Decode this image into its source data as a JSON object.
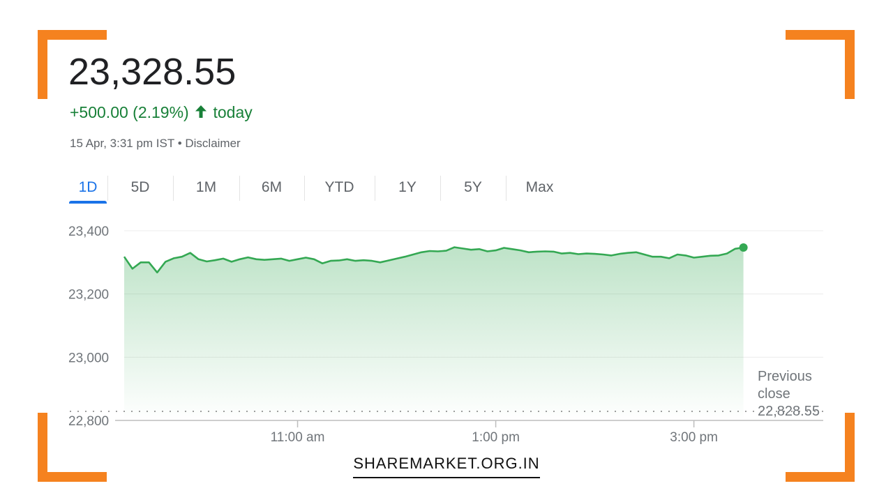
{
  "quote": {
    "price": "23,328.55",
    "change": "+500.00 (2.19%)",
    "change_suffix": "today",
    "timestamp": "15 Apr, 3:31 pm IST",
    "separator": "•",
    "disclaimer": "Disclaimer",
    "up_color": "#188038"
  },
  "tabs": [
    {
      "label": "1D",
      "active": true
    },
    {
      "label": "5D",
      "active": false
    },
    {
      "label": "1M",
      "active": false
    },
    {
      "label": "6M",
      "active": false
    },
    {
      "label": "YTD",
      "active": false
    },
    {
      "label": "1Y",
      "active": false
    },
    {
      "label": "5Y",
      "active": false
    },
    {
      "label": "Max",
      "active": false
    }
  ],
  "previous_close": {
    "line1": "Previous",
    "line2": "close",
    "value_label": "22,828.55",
    "value": 22828.55
  },
  "chart_data": {
    "type": "area",
    "ylim": [
      22800,
      23400
    ],
    "xlim": [
      "09:15",
      "15:30"
    ],
    "y_ticks": [
      {
        "value": 23400,
        "label": "23,400"
      },
      {
        "value": 23200,
        "label": "23,200"
      },
      {
        "value": 23000,
        "label": "23,000"
      },
      {
        "value": 22800,
        "label": "22,800"
      }
    ],
    "x_ticks": [
      {
        "time": "11:00",
        "label": "11:00 am"
      },
      {
        "time": "13:00",
        "label": "1:00 pm"
      },
      {
        "time": "15:00",
        "label": "3:00 pm"
      }
    ],
    "grid": true,
    "line_color": "#34a853",
    "x": [
      "09:15",
      "09:20",
      "09:25",
      "09:30",
      "09:35",
      "09:40",
      "09:45",
      "09:50",
      "09:55",
      "10:00",
      "10:05",
      "10:10",
      "10:15",
      "10:20",
      "10:25",
      "10:30",
      "10:35",
      "10:40",
      "10:45",
      "10:50",
      "10:55",
      "11:00",
      "11:05",
      "11:10",
      "11:15",
      "11:20",
      "11:25",
      "11:30",
      "11:35",
      "11:40",
      "11:45",
      "11:50",
      "11:55",
      "12:00",
      "12:05",
      "12:10",
      "12:15",
      "12:20",
      "12:25",
      "12:30",
      "12:35",
      "12:40",
      "12:45",
      "12:50",
      "12:55",
      "13:00",
      "13:05",
      "13:10",
      "13:15",
      "13:20",
      "13:25",
      "13:30",
      "13:35",
      "13:40",
      "13:45",
      "13:50",
      "13:55",
      "14:00",
      "14:05",
      "14:10",
      "14:15",
      "14:20",
      "14:25",
      "14:30",
      "14:35",
      "14:40",
      "14:45",
      "14:50",
      "14:55",
      "15:00",
      "15:05",
      "15:10",
      "15:15",
      "15:20",
      "15:25",
      "15:30"
    ],
    "values": [
      23318,
      23280,
      23300,
      23300,
      23268,
      23302,
      23313,
      23318,
      23330,
      23310,
      23303,
      23307,
      23312,
      23302,
      23310,
      23316,
      23310,
      23308,
      23310,
      23312,
      23305,
      23310,
      23315,
      23310,
      23297,
      23305,
      23306,
      23310,
      23305,
      23307,
      23305,
      23300,
      23306,
      23312,
      23318,
      23325,
      23332,
      23336,
      23335,
      23337,
      23348,
      23344,
      23340,
      23342,
      23335,
      23338,
      23346,
      23342,
      23338,
      23332,
      23334,
      23335,
      23334,
      23328,
      23330,
      23326,
      23328,
      23327,
      23325,
      23322,
      23327,
      23330,
      23332,
      23325,
      23318,
      23318,
      23313,
      23325,
      23322,
      23315,
      23318,
      23321,
      23322,
      23328,
      23343,
      23347
    ],
    "last_point": {
      "time": "15:31",
      "value": 23328.55
    }
  },
  "brand": {
    "label": "SHAREMARKET.ORG.IN"
  }
}
